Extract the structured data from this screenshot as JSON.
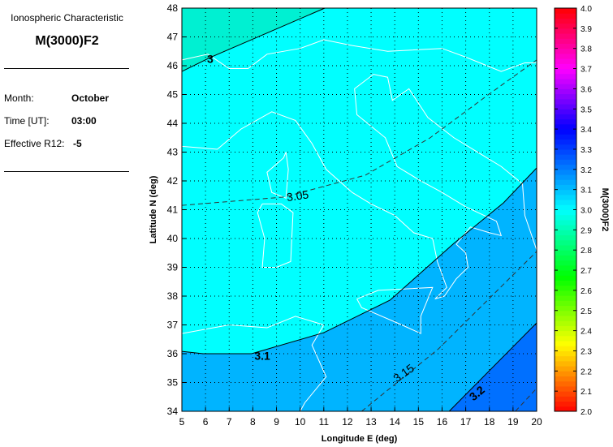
{
  "info": {
    "heading": "Ionospheric Characteristic",
    "characteristic": "M(3000)F2",
    "month_label": "Month:",
    "month": "October",
    "time_label": "Time [UT]:",
    "time": "03:00",
    "r12_label": "Effective R12:",
    "r12": "-5"
  },
  "chart_data": {
    "type": "heatmap",
    "xlabel": "Longitude E (deg)",
    "ylabel": "Latitude N (deg)",
    "xlim": [
      5,
      20
    ],
    "ylim": [
      34,
      48
    ],
    "xticks": [
      "5",
      "6",
      "7",
      "8",
      "9",
      "10",
      "11",
      "12",
      "13",
      "14",
      "15",
      "16",
      "17",
      "18",
      "19",
      "20"
    ],
    "yticks": [
      "34",
      "35",
      "36",
      "37",
      "38",
      "39",
      "40",
      "41",
      "42",
      "43",
      "44",
      "45",
      "46",
      "47",
      "48"
    ],
    "grid": true,
    "colorbar": {
      "label": "M(3000)F2",
      "range": [
        2.0,
        4.0
      ],
      "ticks": [
        "2.0",
        "2.1",
        "2.2",
        "2.3",
        "2.4",
        "2.5",
        "2.6",
        "2.7",
        "2.8",
        "2.9",
        "3.0",
        "3.1",
        "3.2",
        "3.3",
        "3.4",
        "3.5",
        "3.6",
        "3.7",
        "3.8",
        "3.9",
        "4.0"
      ]
    },
    "contours": [
      {
        "level": 3.0,
        "label": "3",
        "style": "solid",
        "points": [
          [
            5,
            45.8
          ],
          [
            6.24,
            46.3
          ],
          [
            8.64,
            47.15
          ],
          [
            11.04,
            48
          ]
        ]
      },
      {
        "level": 3.05,
        "label": "3.05",
        "style": "dashed",
        "points": [
          [
            5,
            41.15
          ],
          [
            9.33,
            41.44
          ],
          [
            12.76,
            42.2
          ],
          [
            15.5,
            43.5
          ],
          [
            17.9,
            44.96
          ],
          [
            20,
            46.2
          ]
        ]
      },
      {
        "level": 3.1,
        "label": "3.1",
        "style": "solid",
        "points": [
          [
            5,
            36.08
          ],
          [
            5.9,
            36.0
          ],
          [
            7.95,
            36.0
          ],
          [
            11,
            36.73
          ],
          [
            13.8,
            37.86
          ],
          [
            16.5,
            39.83
          ],
          [
            18.6,
            41.24
          ],
          [
            20,
            42.45
          ]
        ]
      },
      {
        "level": 3.15,
        "label": "3.15",
        "style": "dashed",
        "points": [
          [
            12.6,
            34
          ],
          [
            15.85,
            36.17
          ],
          [
            20,
            39.55
          ]
        ]
      },
      {
        "level": 3.2,
        "label": "3.2",
        "style": "solid",
        "points": [
          [
            16.3,
            34
          ],
          [
            20,
            37.07
          ]
        ]
      },
      {
        "level": 3.25,
        "label": "",
        "style": "dashed",
        "points": [
          [
            19.1,
            34
          ],
          [
            20,
            34.8
          ]
        ]
      }
    ],
    "band_colors": {
      "below_3.0": "#00f0d2",
      "3.0_3.1": "#00ffff",
      "3.1_3.2": "#00b4ff",
      "above_3.2": "#0070ff"
    }
  }
}
